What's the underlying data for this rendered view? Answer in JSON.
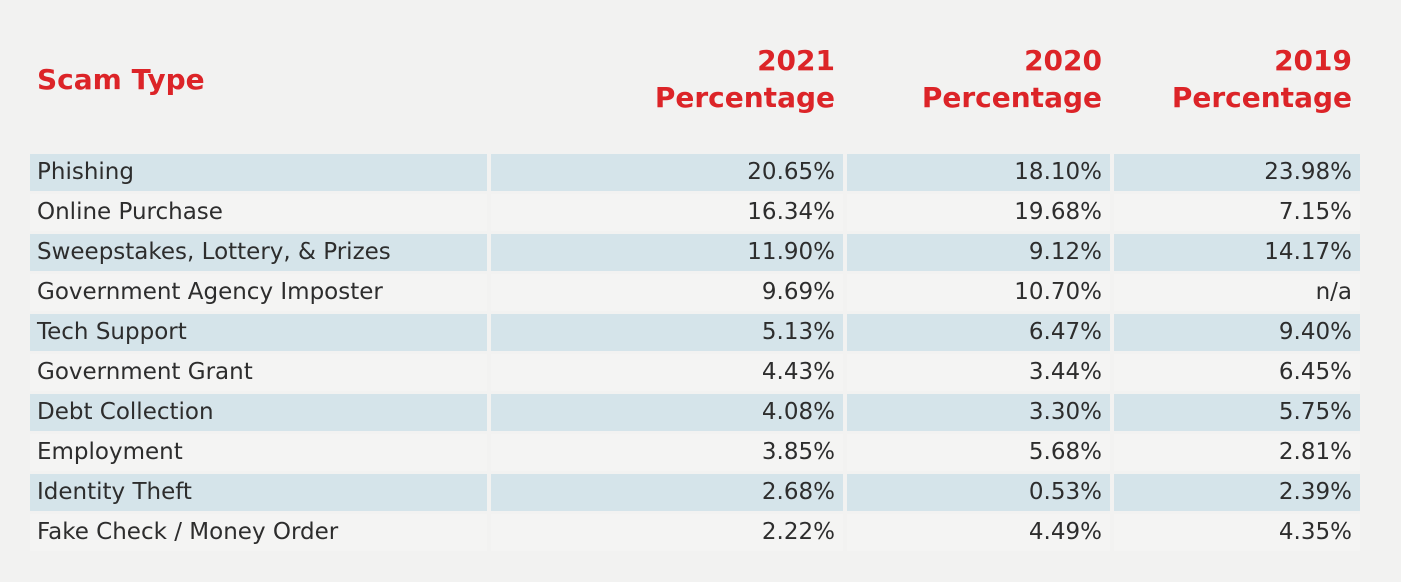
{
  "page": {
    "background_color": "#f2f2f1"
  },
  "table": {
    "accent_color": "#dc2428",
    "text_color": "#2d2d2d",
    "row_alt_color": "#d5e4ea",
    "row_base_color": "#f4f4f3",
    "header": {
      "scam_type": "Scam Type",
      "columns": [
        {
          "year": "2021",
          "label": "Percentage"
        },
        {
          "year": "2020",
          "label": "Percentage"
        },
        {
          "year": "2019",
          "label": "Percentage"
        }
      ]
    },
    "rows": [
      {
        "scam_type": "Phishing",
        "pct_2021": "20.65%",
        "pct_2020": "18.10%",
        "pct_2019": "23.98%"
      },
      {
        "scam_type": "Online Purchase",
        "pct_2021": "16.34%",
        "pct_2020": "19.68%",
        "pct_2019": "7.15%"
      },
      {
        "scam_type": "Sweepstakes, Lottery, & Prizes",
        "pct_2021": "11.90%",
        "pct_2020": "9.12%",
        "pct_2019": "14.17%"
      },
      {
        "scam_type": "Government Agency Imposter",
        "pct_2021": "9.69%",
        "pct_2020": "10.70%",
        "pct_2019": "n/a"
      },
      {
        "scam_type": "Tech Support",
        "pct_2021": "5.13%",
        "pct_2020": "6.47%",
        "pct_2019": "9.40%"
      },
      {
        "scam_type": "Government Grant",
        "pct_2021": "4.43%",
        "pct_2020": "3.44%",
        "pct_2019": "6.45%"
      },
      {
        "scam_type": "Debt Collection",
        "pct_2021": "4.08%",
        "pct_2020": "3.30%",
        "pct_2019": "5.75%"
      },
      {
        "scam_type": "Employment",
        "pct_2021": "3.85%",
        "pct_2020": "5.68%",
        "pct_2019": "2.81%"
      },
      {
        "scam_type": "Identity Theft",
        "pct_2021": "2.68%",
        "pct_2020": "0.53%",
        "pct_2019": "2.39%"
      },
      {
        "scam_type": "Fake Check / Money Order",
        "pct_2021": "2.22%",
        "pct_2020": "4.49%",
        "pct_2019": "4.35%"
      }
    ]
  },
  "chart_data": {
    "type": "table",
    "title": "",
    "columns": [
      "Scam Type",
      "2021 Percentage",
      "2020 Percentage",
      "2019 Percentage"
    ],
    "rows": [
      [
        "Phishing",
        "20.65%",
        "18.10%",
        "23.98%"
      ],
      [
        "Online Purchase",
        "16.34%",
        "19.68%",
        "7.15%"
      ],
      [
        "Sweepstakes, Lottery, & Prizes",
        "11.90%",
        "9.12%",
        "14.17%"
      ],
      [
        "Government Agency Imposter",
        "9.69%",
        "10.70%",
        "n/a"
      ],
      [
        "Tech Support",
        "5.13%",
        "6.47%",
        "9.40%"
      ],
      [
        "Government Grant",
        "4.43%",
        "3.44%",
        "6.45%"
      ],
      [
        "Debt Collection",
        "4.08%",
        "3.30%",
        "5.75%"
      ],
      [
        "Employment",
        "3.85%",
        "5.68%",
        "2.81%"
      ],
      [
        "Identity Theft",
        "2.68%",
        "0.53%",
        "2.39%"
      ],
      [
        "Fake Check / Money Order",
        "2.22%",
        "4.49%",
        "4.35%"
      ]
    ],
    "series": [
      {
        "name": "2021 Percentage",
        "values": [
          20.65,
          16.34,
          11.9,
          9.69,
          5.13,
          4.43,
          4.08,
          3.85,
          2.68,
          2.22
        ]
      },
      {
        "name": "2020 Percentage",
        "values": [
          18.1,
          19.68,
          9.12,
          10.7,
          6.47,
          3.44,
          3.3,
          5.68,
          0.53,
          4.49
        ]
      },
      {
        "name": "2019 Percentage",
        "values": [
          23.98,
          7.15,
          14.17,
          null,
          9.4,
          6.45,
          5.75,
          2.81,
          2.39,
          4.35
        ]
      }
    ],
    "categories": [
      "Phishing",
      "Online Purchase",
      "Sweepstakes, Lottery, & Prizes",
      "Government Agency Imposter",
      "Tech Support",
      "Government Grant",
      "Debt Collection",
      "Employment",
      "Identity Theft",
      "Fake Check / Money Order"
    ],
    "layout_hints": {
      "striped_rows": true,
      "numeric_columns_right_aligned": true,
      "header_color": "#dc2428"
    }
  }
}
